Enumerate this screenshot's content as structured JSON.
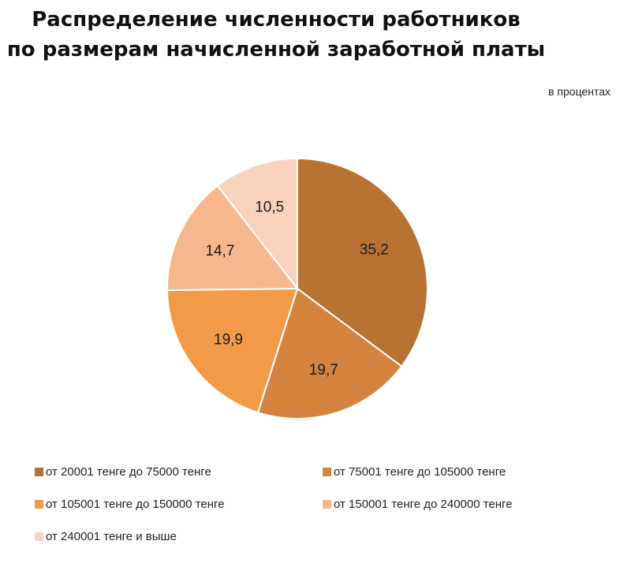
{
  "chart_data": {
    "type": "pie",
    "title_lines": [
      "Распределение численности работников",
      "по размерам начисленной заработной платы"
    ],
    "units_note": "в процентах",
    "slices": [
      {
        "label": "от 20001 тенге до 75000 тенге",
        "value": 35.2,
        "value_label": "35,2",
        "color": "#B87333"
      },
      {
        "label": "от 75001 тенге до 105000 тенге",
        "value": 19.7,
        "value_label": "19,7",
        "color": "#D4843E"
      },
      {
        "label": "от 105001 тенге до 150000 тенге",
        "value": 19.9,
        "value_label": "19,9",
        "color": "#F29A48"
      },
      {
        "label": "от 150001 тенге до 240000 тенге",
        "value": 14.7,
        "value_label": "14,7",
        "color": "#F6B78E"
      },
      {
        "label": "от 240001 тенге и выше",
        "value": 10.5,
        "value_label": "10,5",
        "color": "#F9D2BD"
      }
    ],
    "legend_position": "bottom",
    "start_angle": "12 o'clock",
    "direction": "clockwise"
  }
}
